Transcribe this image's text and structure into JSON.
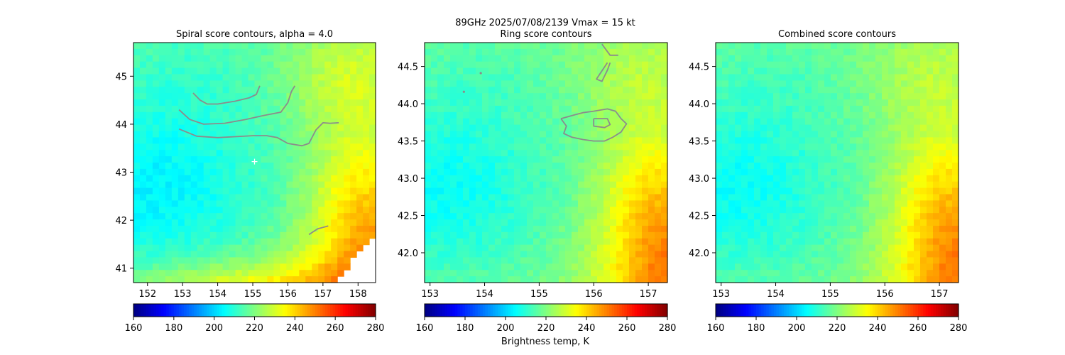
{
  "suptitle_line": "89GHz  2025/07/08/2139    Vmax = 15 kt",
  "colorbar_label": "Brightness temp, K",
  "colorbar_ticks": [
    "160",
    "180",
    "200",
    "220",
    "240",
    "260",
    "280"
  ],
  "chart_data": [
    {
      "type": "heatmap",
      "title": "Spiral score contours, alpha =  4.0",
      "xlim": [
        151.6,
        158.5
      ],
      "ylim": [
        40.7,
        45.7
      ],
      "xticks": [
        152,
        153,
        154,
        155,
        156,
        157,
        158
      ],
      "yticks": [
        41,
        42,
        43,
        44,
        45
      ],
      "colorbar_range": [
        160,
        280
      ],
      "center_marker": [
        155.05,
        43.22
      ],
      "contours": [
        [
          [
            153.3,
            44.65
          ],
          [
            153.5,
            44.5
          ],
          [
            153.7,
            44.42
          ],
          [
            154.0,
            44.42
          ],
          [
            154.5,
            44.48
          ],
          [
            154.9,
            44.55
          ],
          [
            155.1,
            44.62
          ],
          [
            155.2,
            44.8
          ]
        ],
        [
          [
            152.9,
            44.3
          ],
          [
            153.2,
            44.1
          ],
          [
            153.6,
            44.0
          ],
          [
            154.2,
            44.02
          ],
          [
            154.8,
            44.1
          ],
          [
            155.3,
            44.18
          ],
          [
            155.8,
            44.25
          ],
          [
            156.0,
            44.45
          ],
          [
            156.1,
            44.68
          ],
          [
            156.2,
            44.8
          ]
        ],
        [
          [
            152.9,
            43.9
          ],
          [
            153.4,
            43.75
          ],
          [
            154.0,
            43.72
          ],
          [
            154.5,
            43.74
          ],
          [
            155.0,
            43.76
          ],
          [
            155.4,
            43.76
          ],
          [
            155.7,
            43.72
          ],
          [
            156.0,
            43.6
          ],
          [
            156.4,
            43.55
          ],
          [
            156.6,
            43.6
          ],
          [
            156.8,
            43.88
          ],
          [
            157.0,
            44.03
          ],
          [
            157.2,
            44.02
          ],
          [
            157.45,
            44.03
          ]
        ],
        [
          [
            156.6,
            41.7
          ],
          [
            156.85,
            41.82
          ],
          [
            157.15,
            41.88
          ]
        ]
      ],
      "field": {
        "base": 218,
        "cold_corner": "bottom-right",
        "warm_region": "left-center",
        "min_K": 200,
        "max_K": 268,
        "missing_wedge": "bottom-right"
      }
    },
    {
      "type": "heatmap",
      "title": "Ring score contours",
      "xlim": [
        152.9,
        157.35
      ],
      "ylim": [
        41.6,
        44.82
      ],
      "xticks": [
        153,
        154,
        155,
        156,
        157
      ],
      "yticks": [
        42.0,
        42.5,
        43.0,
        43.5,
        44.0,
        44.5
      ],
      "colorbar_range": [
        160,
        280
      ],
      "contours": [
        [
          [
            155.4,
            43.8
          ],
          [
            155.65,
            43.85
          ],
          [
            155.8,
            43.88
          ],
          [
            156.0,
            43.9
          ],
          [
            156.25,
            43.93
          ],
          [
            156.4,
            43.9
          ],
          [
            156.5,
            43.8
          ],
          [
            156.6,
            43.73
          ],
          [
            156.5,
            43.62
          ],
          [
            156.35,
            43.55
          ],
          [
            156.2,
            43.5
          ],
          [
            156.0,
            43.5
          ],
          [
            155.8,
            43.52
          ],
          [
            155.6,
            43.55
          ],
          [
            155.45,
            43.6
          ],
          [
            155.5,
            43.7
          ],
          [
            155.4,
            43.8
          ]
        ],
        [
          [
            156.0,
            43.8
          ],
          [
            156.25,
            43.8
          ],
          [
            156.3,
            43.72
          ],
          [
            156.2,
            43.68
          ],
          [
            156.0,
            43.7
          ],
          [
            156.0,
            43.8
          ]
        ],
        [
          [
            156.15,
            44.8
          ],
          [
            156.3,
            44.65
          ],
          [
            156.45,
            44.65
          ]
        ],
        [
          [
            156.3,
            44.55
          ],
          [
            156.25,
            44.45
          ],
          [
            156.15,
            44.3
          ],
          [
            156.05,
            44.33
          ],
          [
            156.25,
            44.55
          ]
        ]
      ],
      "dots": [
        [
          153.93,
          44.41
        ],
        [
          153.62,
          44.16
        ]
      ],
      "field": {
        "base": 220,
        "cold_corner": "bottom-right",
        "warm_region": "left-center",
        "min_K": 202,
        "max_K": 262
      }
    },
    {
      "type": "heatmap",
      "title": "Combined score contours",
      "xlim": [
        152.9,
        157.35
      ],
      "ylim": [
        41.6,
        44.82
      ],
      "xticks": [
        153,
        154,
        155,
        156,
        157
      ],
      "yticks": [
        42.0,
        42.5,
        43.0,
        43.5,
        44.0,
        44.5
      ],
      "colorbar_range": [
        160,
        280
      ],
      "contours": [],
      "field": {
        "base": 220,
        "cold_corner": "bottom-right",
        "warm_region": "left-center",
        "min_K": 202,
        "max_K": 262
      }
    }
  ]
}
